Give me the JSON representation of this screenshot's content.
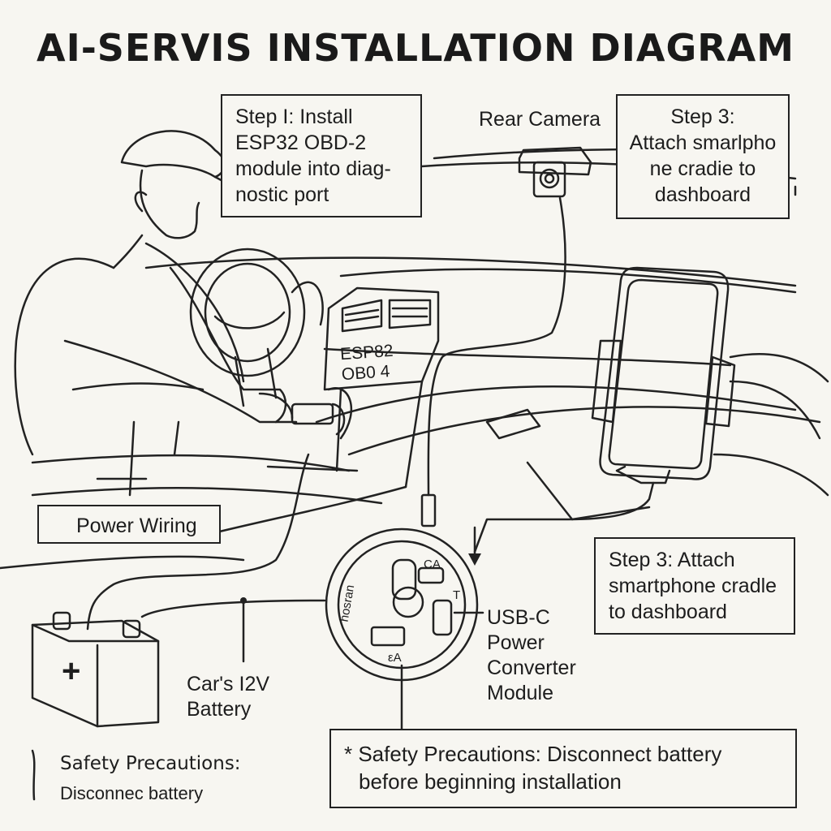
{
  "title": "AI-SERVIS INSTALLATION DIAGRAM",
  "callouts": {
    "step1": [
      "Step I: Install",
      "ESP32 OBD-2",
      "module into diag-",
      "nostic port"
    ],
    "step3_top": [
      "Step 3:",
      "Attach smarlpho",
      "ne cradie to",
      "dashboard"
    ],
    "step3_bottom": [
      "Step 3: Attach",
      "smartphone cradle",
      "to dashboard"
    ],
    "rear_camera": "Rear Camera",
    "power_wiring": "Power Wiring",
    "battery": [
      "Car's I2V",
      "Battery"
    ],
    "usbc": [
      "USB-C",
      "Power",
      "Converter",
      "Module"
    ],
    "safety_left_title": "Safety Precautions:",
    "safety_left_body": "Disconnec battery",
    "safety_box": [
      "* Safety Precautions: Disconnect battery",
      "before beginning installation"
    ]
  },
  "module_screen": [
    "ESP82",
    "OB0  4"
  ],
  "converter_labels": {
    "top": "CA",
    "bottom": "εA",
    "side": "hosran",
    "t": "T"
  },
  "battery_symbol": "+"
}
